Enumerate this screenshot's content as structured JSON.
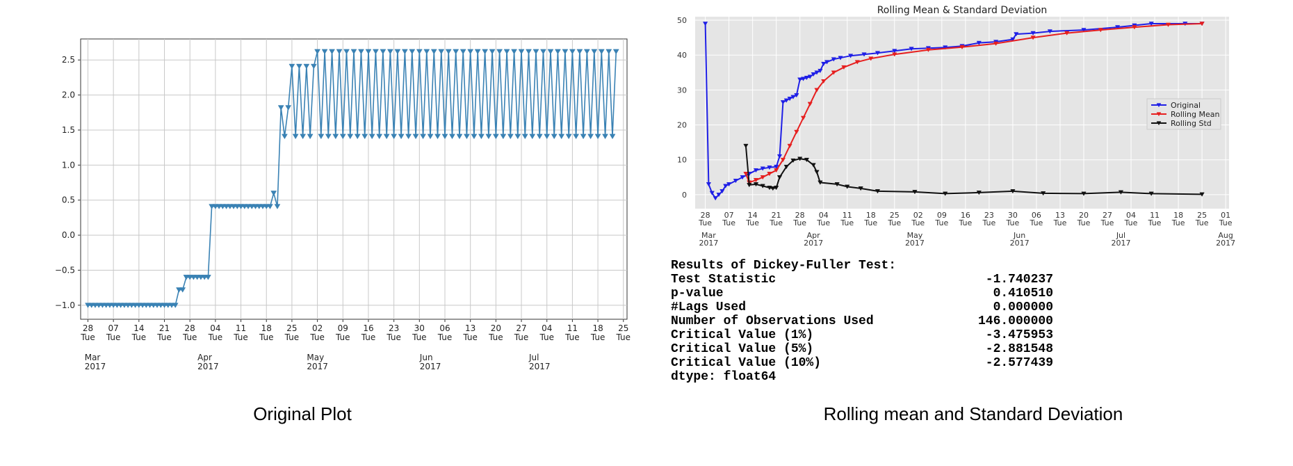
{
  "captions": {
    "left": "Original Plot",
    "right": "Rolling mean and Standard Deviation"
  },
  "chart_data": [
    {
      "type": "line",
      "title": "",
      "xlabel": "",
      "ylabel": "",
      "grid": true,
      "marker": "triangle-down",
      "color": "#3a82b4",
      "ylim": [
        -1.2,
        2.8
      ],
      "xlim": [
        "2017-02-26",
        "2017-07-26"
      ],
      "y_ticks": [
        "−1.0",
        "−0.5",
        "0.0",
        "0.5",
        "1.0",
        "1.5",
        "2.0",
        "2.5"
      ],
      "x_ticks": [
        {
          "date": "2017-02-28",
          "day": "28",
          "dow": "Tue"
        },
        {
          "date": "2017-03-07",
          "day": "07",
          "dow": "Tue"
        },
        {
          "date": "2017-03-14",
          "day": "14",
          "dow": "Tue"
        },
        {
          "date": "2017-03-21",
          "day": "21",
          "dow": "Tue"
        },
        {
          "date": "2017-03-28",
          "day": "28",
          "dow": "Tue"
        },
        {
          "date": "2017-04-04",
          "day": "04",
          "dow": "Tue"
        },
        {
          "date": "2017-04-11",
          "day": "11",
          "dow": "Tue"
        },
        {
          "date": "2017-04-18",
          "day": "18",
          "dow": "Tue"
        },
        {
          "date": "2017-04-25",
          "day": "25",
          "dow": "Tue"
        },
        {
          "date": "2017-05-02",
          "day": "02",
          "dow": "Tue"
        },
        {
          "date": "2017-05-09",
          "day": "09",
          "dow": "Tue"
        },
        {
          "date": "2017-05-16",
          "day": "16",
          "dow": "Tue"
        },
        {
          "date": "2017-05-23",
          "day": "23",
          "dow": "Tue"
        },
        {
          "date": "2017-05-30",
          "day": "30",
          "dow": "Tue"
        },
        {
          "date": "2017-06-06",
          "day": "06",
          "dow": "Tue"
        },
        {
          "date": "2017-06-13",
          "day": "13",
          "dow": "Tue"
        },
        {
          "date": "2017-06-20",
          "day": "20",
          "dow": "Tue"
        },
        {
          "date": "2017-06-27",
          "day": "27",
          "dow": "Tue"
        },
        {
          "date": "2017-07-04",
          "day": "04",
          "dow": "Tue"
        },
        {
          "date": "2017-07-11",
          "day": "11",
          "dow": "Tue"
        },
        {
          "date": "2017-07-18",
          "day": "18",
          "dow": "Tue"
        },
        {
          "date": "2017-07-25",
          "day": "25",
          "dow": "Tue"
        }
      ],
      "month_labels": [
        {
          "date": "2017-03-01",
          "month": "Mar",
          "year": "2017"
        },
        {
          "date": "2017-04-01",
          "month": "Apr",
          "year": "2017"
        },
        {
          "date": "2017-05-01",
          "month": "May",
          "year": "2017"
        },
        {
          "date": "2017-06-01",
          "month": "Jun",
          "year": "2017"
        },
        {
          "date": "2017-07-01",
          "month": "Jul",
          "year": "2017"
        }
      ],
      "segments": [
        {
          "start": "2017-02-28",
          "end": "2017-03-24",
          "pattern": "constant",
          "value": -1.0
        },
        {
          "start": "2017-03-25",
          "end": "2017-03-26",
          "pattern": "constant",
          "value": -0.78
        },
        {
          "start": "2017-03-27",
          "end": "2017-04-02",
          "pattern": "constant",
          "value": -0.6
        },
        {
          "start": "2017-04-03",
          "end": "2017-04-19",
          "pattern": "constant",
          "value": 0.41
        },
        {
          "start": "2017-04-20",
          "end": "2017-04-20",
          "pattern": "constant",
          "value": 0.6
        },
        {
          "start": "2017-04-21",
          "end": "2017-04-21",
          "pattern": "constant",
          "value": 0.41
        },
        {
          "start": "2017-04-22",
          "end": "2017-04-24",
          "pattern": "alternate",
          "high": 1.82,
          "low": 1.41
        },
        {
          "start": "2017-04-25",
          "end": "2017-05-01",
          "pattern": "alternate",
          "high": 2.41,
          "low": 1.41
        },
        {
          "start": "2017-05-02",
          "end": "2017-07-23",
          "pattern": "alternate",
          "high": 2.62,
          "low": 1.41
        }
      ]
    },
    {
      "type": "line",
      "title": "Rolling Mean & Standard Deviation",
      "xlabel": "",
      "ylabel": "",
      "grid": true,
      "ylim": [
        -4,
        51
      ],
      "xlim": [
        "2017-02-25",
        "2017-08-02"
      ],
      "y_ticks": [
        "0",
        "10",
        "20",
        "30",
        "40",
        "50"
      ],
      "legend": "center-right",
      "x_ticks": [
        {
          "date": "2017-02-28",
          "day": "28",
          "dow": "Tue"
        },
        {
          "date": "2017-03-07",
          "day": "07",
          "dow": "Tue"
        },
        {
          "date": "2017-03-14",
          "day": "14",
          "dow": "Tue"
        },
        {
          "date": "2017-03-21",
          "day": "21",
          "dow": "Tue"
        },
        {
          "date": "2017-03-28",
          "day": "28",
          "dow": "Tue"
        },
        {
          "date": "2017-04-04",
          "day": "04",
          "dow": "Tue"
        },
        {
          "date": "2017-04-11",
          "day": "11",
          "dow": "Tue"
        },
        {
          "date": "2017-04-18",
          "day": "18",
          "dow": "Tue"
        },
        {
          "date": "2017-04-25",
          "day": "25",
          "dow": "Tue"
        },
        {
          "date": "2017-05-02",
          "day": "02",
          "dow": "Tue"
        },
        {
          "date": "2017-05-09",
          "day": "09",
          "dow": "Tue"
        },
        {
          "date": "2017-05-16",
          "day": "16",
          "dow": "Tue"
        },
        {
          "date": "2017-05-23",
          "day": "23",
          "dow": "Tue"
        },
        {
          "date": "2017-05-30",
          "day": "30",
          "dow": "Tue"
        },
        {
          "date": "2017-06-06",
          "day": "06",
          "dow": "Tue"
        },
        {
          "date": "2017-06-13",
          "day": "13",
          "dow": "Tue"
        },
        {
          "date": "2017-06-20",
          "day": "20",
          "dow": "Tue"
        },
        {
          "date": "2017-06-27",
          "day": "27",
          "dow": "Tue"
        },
        {
          "date": "2017-07-04",
          "day": "04",
          "dow": "Tue"
        },
        {
          "date": "2017-07-11",
          "day": "11",
          "dow": "Tue"
        },
        {
          "date": "2017-07-18",
          "day": "18",
          "dow": "Tue"
        },
        {
          "date": "2017-07-25",
          "day": "25",
          "dow": "Tue"
        },
        {
          "date": "2017-08-01",
          "day": "01",
          "dow": "Tue"
        }
      ],
      "month_labels": [
        {
          "date": "2017-03-01",
          "month": "Mar",
          "year": "2017"
        },
        {
          "date": "2017-04-01",
          "month": "Apr",
          "year": "2017"
        },
        {
          "date": "2017-05-01",
          "month": "May",
          "year": "2017"
        },
        {
          "date": "2017-06-01",
          "month": "Jun",
          "year": "2017"
        },
        {
          "date": "2017-07-01",
          "month": "Jul",
          "year": "2017"
        },
        {
          "date": "2017-08-01",
          "month": "Aug",
          "year": "2017"
        }
      ],
      "series": [
        {
          "name": "Original",
          "color": "#1f1fe6",
          "points": [
            [
              "2017-02-28",
              49
            ],
            [
              "2017-03-01",
              3
            ],
            [
              "2017-03-02",
              0.5
            ],
            [
              "2017-03-03",
              -1
            ],
            [
              "2017-03-04",
              0
            ],
            [
              "2017-03-05",
              1
            ],
            [
              "2017-03-06",
              2.5
            ],
            [
              "2017-03-07",
              3
            ],
            [
              "2017-03-09",
              4
            ],
            [
              "2017-03-11",
              5
            ],
            [
              "2017-03-13",
              6
            ],
            [
              "2017-03-15",
              7
            ],
            [
              "2017-03-17",
              7.5
            ],
            [
              "2017-03-19",
              7.8
            ],
            [
              "2017-03-21",
              8
            ],
            [
              "2017-03-22",
              11
            ],
            [
              "2017-03-23",
              26.5
            ],
            [
              "2017-03-24",
              27
            ],
            [
              "2017-03-25",
              27.5
            ],
            [
              "2017-03-26",
              28
            ],
            [
              "2017-03-27",
              28.5
            ],
            [
              "2017-03-28",
              33
            ],
            [
              "2017-03-29",
              33.2
            ],
            [
              "2017-03-30",
              33.5
            ],
            [
              "2017-03-31",
              33.8
            ],
            [
              "2017-04-01",
              34.5
            ],
            [
              "2017-04-02",
              35
            ],
            [
              "2017-04-03",
              35.5
            ],
            [
              "2017-04-04",
              37.5
            ],
            [
              "2017-04-05",
              38
            ],
            [
              "2017-04-07",
              38.8
            ],
            [
              "2017-04-09",
              39.2
            ],
            [
              "2017-04-12",
              39.8
            ],
            [
              "2017-04-16",
              40.2
            ],
            [
              "2017-04-20",
              40.6
            ],
            [
              "2017-04-25",
              41.2
            ],
            [
              "2017-04-30",
              41.8
            ],
            [
              "2017-05-05",
              42
            ],
            [
              "2017-05-10",
              42.2
            ],
            [
              "2017-05-15",
              42.6
            ],
            [
              "2017-05-20",
              43.5
            ],
            [
              "2017-05-25",
              43.8
            ],
            [
              "2017-05-30",
              44.5
            ],
            [
              "2017-05-31",
              46
            ],
            [
              "2017-06-05",
              46.3
            ],
            [
              "2017-06-10",
              46.8
            ],
            [
              "2017-06-20",
              47.2
            ],
            [
              "2017-06-30",
              48
            ],
            [
              "2017-07-05",
              48.5
            ],
            [
              "2017-07-10",
              49
            ],
            [
              "2017-07-20",
              49
            ],
            [
              "2017-07-25",
              49
            ]
          ]
        },
        {
          "name": "Rolling Mean",
          "color": "#e61f1f",
          "points": [
            [
              "2017-03-12",
              6
            ],
            [
              "2017-03-13",
              3.5
            ],
            [
              "2017-03-15",
              4.2
            ],
            [
              "2017-03-17",
              5
            ],
            [
              "2017-03-19",
              6
            ],
            [
              "2017-03-21",
              7
            ],
            [
              "2017-03-23",
              10
            ],
            [
              "2017-03-25",
              14
            ],
            [
              "2017-03-27",
              18
            ],
            [
              "2017-03-29",
              22
            ],
            [
              "2017-03-31",
              26
            ],
            [
              "2017-04-02",
              30
            ],
            [
              "2017-04-04",
              32.5
            ],
            [
              "2017-04-07",
              35
            ],
            [
              "2017-04-10",
              36.5
            ],
            [
              "2017-04-14",
              38
            ],
            [
              "2017-04-18",
              39
            ],
            [
              "2017-04-25",
              40.2
            ],
            [
              "2017-05-05",
              41.5
            ],
            [
              "2017-05-15",
              42.3
            ],
            [
              "2017-05-25",
              43.3
            ],
            [
              "2017-06-05",
              45
            ],
            [
              "2017-06-15",
              46.3
            ],
            [
              "2017-06-25",
              47.2
            ],
            [
              "2017-07-05",
              48
            ],
            [
              "2017-07-15",
              48.7
            ],
            [
              "2017-07-25",
              49
            ]
          ]
        },
        {
          "name": "Rolling Std",
          "color": "#111111",
          "points": [
            [
              "2017-03-12",
              14
            ],
            [
              "2017-03-13",
              2.8
            ],
            [
              "2017-03-15",
              3
            ],
            [
              "2017-03-17",
              2.5
            ],
            [
              "2017-03-19",
              2
            ],
            [
              "2017-03-20",
              1.8
            ],
            [
              "2017-03-21",
              2
            ],
            [
              "2017-03-22",
              5
            ],
            [
              "2017-03-24",
              8
            ],
            [
              "2017-03-26",
              9.8
            ],
            [
              "2017-03-28",
              10.3
            ],
            [
              "2017-03-30",
              10
            ],
            [
              "2017-04-01",
              8.5
            ],
            [
              "2017-04-02",
              6.5
            ],
            [
              "2017-04-03",
              3.5
            ],
            [
              "2017-04-08",
              3
            ],
            [
              "2017-04-11",
              2.3
            ],
            [
              "2017-04-15",
              1.8
            ],
            [
              "2017-04-20",
              1
            ],
            [
              "2017-05-01",
              0.8
            ],
            [
              "2017-05-10",
              0.3
            ],
            [
              "2017-05-20",
              0.6
            ],
            [
              "2017-05-30",
              1
            ],
            [
              "2017-06-08",
              0.4
            ],
            [
              "2017-06-20",
              0.3
            ],
            [
              "2017-07-01",
              0.7
            ],
            [
              "2017-07-10",
              0.3
            ],
            [
              "2017-07-25",
              0.1
            ]
          ]
        }
      ]
    }
  ],
  "adf": {
    "title": "Results of Dickey-Fuller Test:",
    "rows": [
      {
        "label": "Test Statistic",
        "value": "-1.740237"
      },
      {
        "label": "p-value",
        "value": "0.410510"
      },
      {
        "label": "#Lags Used",
        "value": "0.000000"
      },
      {
        "label": "Number of Observations Used",
        "value": "146.000000"
      },
      {
        "label": "Critical Value (1%)",
        "value": "-3.475953"
      },
      {
        "label": "Critical Value (5%)",
        "value": "-2.881548"
      },
      {
        "label": "Critical Value (10%)",
        "value": "-2.577439"
      }
    ],
    "footer": "dtype: float64"
  }
}
